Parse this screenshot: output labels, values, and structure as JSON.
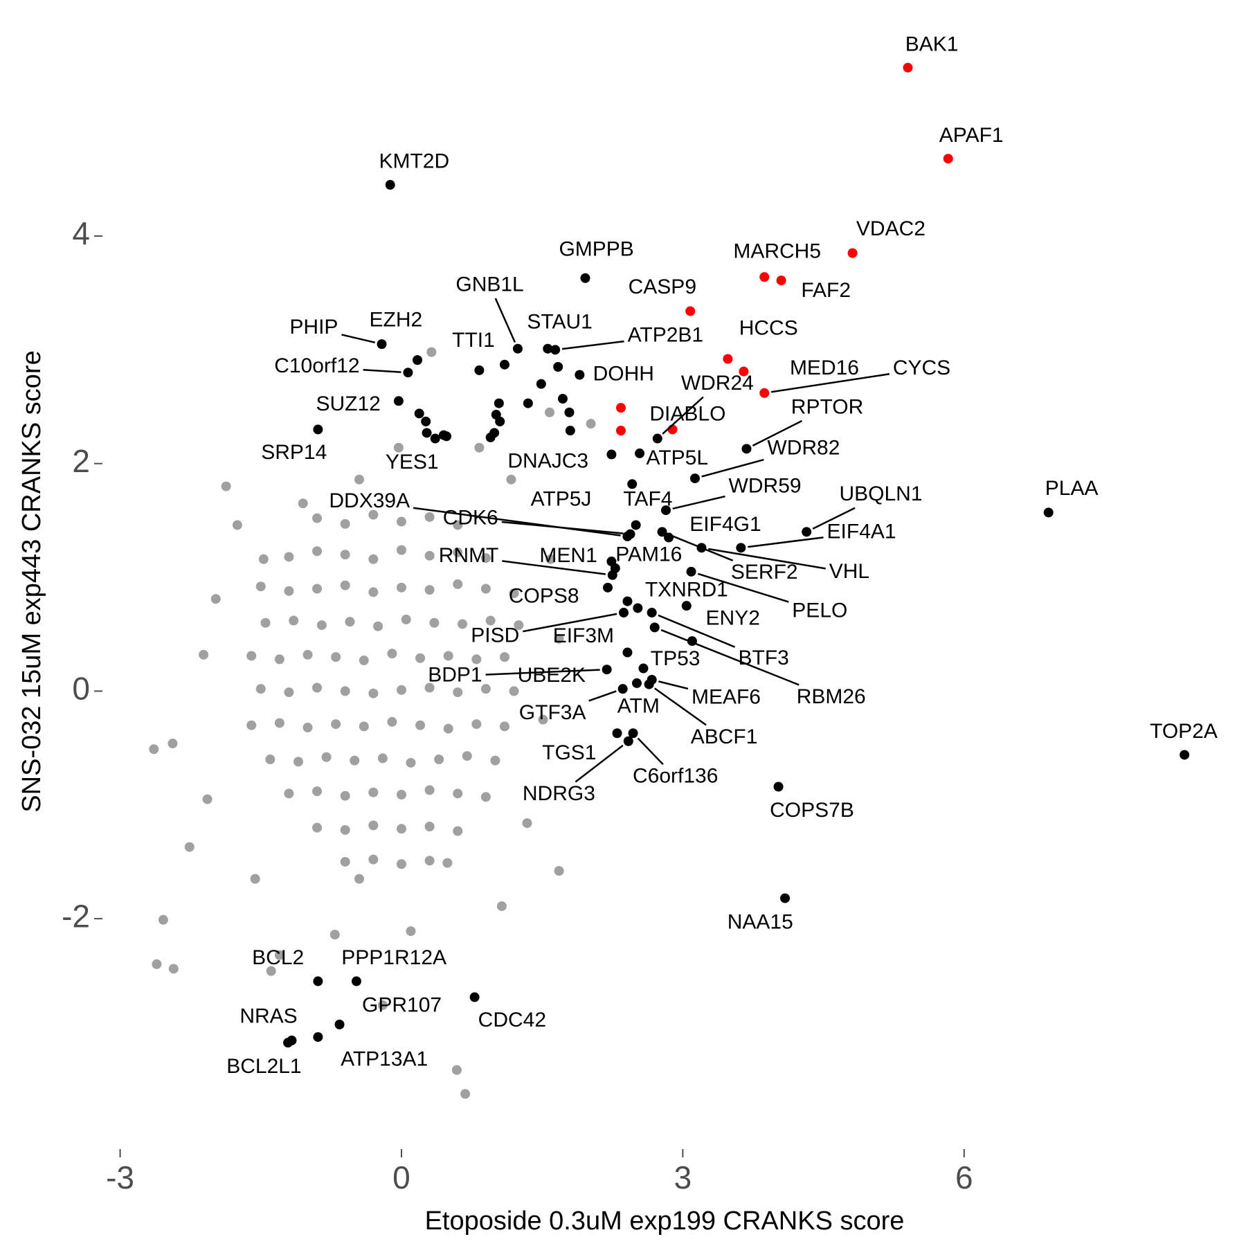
{
  "chart_data": {
    "type": "scatter",
    "xlabel": "Etoposide 0.3uM exp199 CRANKS score",
    "ylabel": "SNS-032 15uM exp443 CRANKS score",
    "xlim": [
      -3.1,
      8.6
    ],
    "ylim": [
      -3.8,
      5.6
    ],
    "xticks": [
      -3,
      0,
      3,
      6
    ],
    "yticks": [
      -2,
      0,
      2,
      4
    ],
    "grid": false,
    "groups": [
      {
        "color": "#a0a0a0",
        "x": [
          -0.9,
          -0.6,
          -0.3,
          0,
          0.3,
          0.6,
          -1.2,
          -0.9,
          -0.6,
          -0.3,
          0,
          0.3,
          0.6,
          0.9,
          -1.5,
          -1.2,
          -0.9,
          -0.6,
          -0.3,
          0,
          0.3,
          0.6,
          0.9,
          1.2,
          -1.45,
          -1.15,
          -0.85,
          -0.55,
          -0.25,
          0.05,
          0.35,
          0.65,
          0.95,
          1.25,
          -1.6,
          -1.3,
          -1.0,
          -0.7,
          -0.4,
          -0.1,
          0.2,
          0.5,
          0.8,
          1.1,
          -1.5,
          -1.2,
          -0.9,
          -0.6,
          -0.3,
          0,
          0.3,
          0.6,
          0.9,
          1.2,
          -1.6,
          -1.3,
          -1.0,
          -0.7,
          -0.4,
          -0.1,
          0.2,
          0.5,
          0.8,
          1.1,
          -1.4,
          -1.1,
          -0.8,
          -0.5,
          -0.2,
          0.1,
          0.4,
          0.7,
          1.0,
          -1.2,
          -0.9,
          -0.6,
          -0.3,
          0,
          0.3,
          0.6,
          0.9,
          -0.9,
          -0.6,
          -0.3,
          0,
          0.3,
          0.6,
          -0.6,
          -0.3,
          0,
          0.3,
          -2.64,
          -2.61,
          -2.43,
          -2.54,
          -2.44,
          -2.26,
          -1.87,
          -1.75,
          0.32,
          0.59,
          0.68,
          -0.2,
          1.07,
          1.68,
          2.02,
          1.58,
          0.1,
          -0.71,
          -1.56,
          -1.98,
          -2.11,
          -2.07,
          -1.3,
          -1.39,
          1.34,
          1.17,
          0.83,
          -0.03,
          -0.45,
          -1.05,
          -1.47,
          1.59,
          1.68,
          1.51,
          0.49,
          -0.45
        ],
        "y": [
          1.52,
          1.47,
          1.55,
          1.49,
          1.53,
          1.46,
          1.18,
          1.23,
          1.2,
          1.16,
          1.24,
          1.19,
          1.22,
          1.17,
          0.92,
          0.88,
          0.9,
          0.93,
          0.87,
          0.91,
          0.89,
          0.94,
          0.9,
          0.86,
          0.6,
          0.62,
          0.58,
          0.61,
          0.57,
          0.63,
          0.6,
          0.59,
          0.62,
          0.58,
          0.31,
          0.28,
          0.32,
          0.3,
          0.27,
          0.33,
          0.29,
          0.31,
          0.28,
          0.3,
          0.02,
          -0.01,
          0.03,
          0,
          -0.02,
          0.01,
          0.03,
          -0.01,
          0.02,
          0,
          -0.3,
          -0.28,
          -0.32,
          -0.29,
          -0.31,
          -0.27,
          -0.3,
          -0.33,
          -0.29,
          -0.31,
          -0.6,
          -0.62,
          -0.58,
          -0.61,
          -0.59,
          -0.63,
          -0.6,
          -0.57,
          -0.61,
          -0.9,
          -0.88,
          -0.92,
          -0.89,
          -0.91,
          -0.87,
          -0.9,
          -0.93,
          -1.2,
          -1.22,
          -1.18,
          -1.21,
          -1.19,
          -1.23,
          -1.5,
          -1.48,
          -1.52,
          -1.49,
          -0.51,
          -2.4,
          -2.44,
          -2.01,
          -0.46,
          -1.37,
          1.8,
          1.46,
          2.98,
          -3.33,
          -3.54,
          -2.76,
          -1.89,
          -1.58,
          2.35,
          2.45,
          -2.11,
          -2.14,
          -1.65,
          0.81,
          0.32,
          -0.95,
          -2.32,
          -2.46,
          -1.16,
          1.86,
          2.14,
          2.14,
          1.86,
          1.65,
          1.16,
          1.16,
          0.46,
          -0.25,
          -1.51,
          -1.65
        ]
      },
      {
        "color": "#000000",
        "x": [
          -0.12,
          1.96,
          1.24,
          1.56,
          1.1,
          1.64,
          -0.21,
          0.17,
          0.07,
          -0.03,
          -0.89,
          0.36,
          0.95,
          1.9,
          2.73,
          3.68,
          3.13,
          2.54,
          2.82,
          2.46,
          2.5,
          2.41,
          2.44,
          4.32,
          3.62,
          2.85,
          3.2,
          2.78,
          3.09,
          2.28,
          2.24,
          2.25,
          2.2,
          2.41,
          3.04,
          2.37,
          2.52,
          2.67,
          2.7,
          2.58,
          2.19,
          2.41,
          2.67,
          2.36,
          2.51,
          2.64,
          2.3,
          2.47,
          2.42,
          4.02,
          4.09,
          6.9,
          8.35,
          -0.89,
          -0.48,
          -0.66,
          0.78,
          -1.17,
          -1.21,
          -0.89,
          0.83,
          1.35,
          1.49,
          1.67,
          1.72,
          1.79,
          1.8,
          1.04,
          1.01,
          1.05,
          0.99,
          0.19,
          0.26,
          0.27,
          0.45,
          0.48,
          2.24,
          3.1
        ],
        "y": [
          4.45,
          3.63,
          3.01,
          3.01,
          2.87,
          3.0,
          3.05,
          2.91,
          2.8,
          2.55,
          2.3,
          2.22,
          2.23,
          2.78,
          2.22,
          2.13,
          1.87,
          2.09,
          1.59,
          1.82,
          1.46,
          1.36,
          1.38,
          1.4,
          1.26,
          1.35,
          1.26,
          1.4,
          1.05,
          1.08,
          1.14,
          1.02,
          0.91,
          0.79,
          0.75,
          0.69,
          0.73,
          0.69,
          0.56,
          0.2,
          0.19,
          0.34,
          0.1,
          0.02,
          0.07,
          0.06,
          -0.37,
          -0.37,
          -0.44,
          -0.84,
          -1.82,
          1.57,
          -0.56,
          -2.55,
          -2.55,
          -2.93,
          -2.69,
          -3.07,
          -3.09,
          -3.04,
          2.82,
          2.53,
          2.7,
          2.85,
          2.57,
          2.45,
          2.29,
          2.53,
          2.43,
          2.37,
          2.27,
          2.44,
          2.37,
          2.27,
          2.25,
          2.24,
          2.08,
          0.44
        ],
        "labels": [
          "KMT2D",
          "GMPPB",
          "GNB1L",
          "STAU1",
          "TTI1",
          "ATP2B1",
          "PHIP",
          "EZH2",
          "C10orf12",
          "SUZ12",
          "SRP14",
          "YES1",
          "DNAJC3",
          "DOHH",
          "WDR24",
          "RPTOR",
          "WDR82",
          "ATP5L",
          "WDR59",
          "ATP5J",
          "TAF4",
          "DDX39A",
          "CDK6",
          "UBQLN1",
          "EIF4A1",
          "EIF4G1",
          "VHL",
          "SERF2",
          "PELO",
          "PAM16",
          "MEN1",
          "RNMT",
          "COPS8",
          "TXNRD1",
          "ENY2",
          "PISD",
          "EIF3M",
          "BTF3",
          "RBM26",
          "TP53",
          "BDP1",
          "UBE2K",
          "MEAF6",
          "GTF3A",
          "ATM",
          "ABCF1",
          "TGS1",
          "C6orf136",
          "NDRG3",
          "COPS7B",
          "NAA15",
          "PLAA",
          "TOP2A",
          "BCL2",
          "PPP1R12A",
          "GPR107",
          "CDC42",
          "NRAS",
          "BCL2L1",
          "ATP13A1",
          null,
          null,
          null,
          null,
          null,
          null,
          null,
          null,
          null,
          null,
          null,
          null,
          null,
          null,
          null,
          null,
          null,
          null
        ]
      },
      {
        "color": "#ff0000",
        "x": [
          5.4,
          5.83,
          4.81,
          3.87,
          4.05,
          3.08,
          3.48,
          3.65,
          3.87,
          2.89,
          2.34,
          2.34
        ],
        "y": [
          5.48,
          4.68,
          3.85,
          3.64,
          3.61,
          3.34,
          2.92,
          2.81,
          2.62,
          2.3,
          2.49,
          2.29
        ],
        "labels": [
          "BAK1",
          "APAF1",
          "VDAC2",
          "MARCH5",
          "FAF2",
          "CASP9",
          "HCCS",
          "MED16",
          "CYCS",
          "DIABLO",
          null,
          null
        ]
      }
    ]
  }
}
